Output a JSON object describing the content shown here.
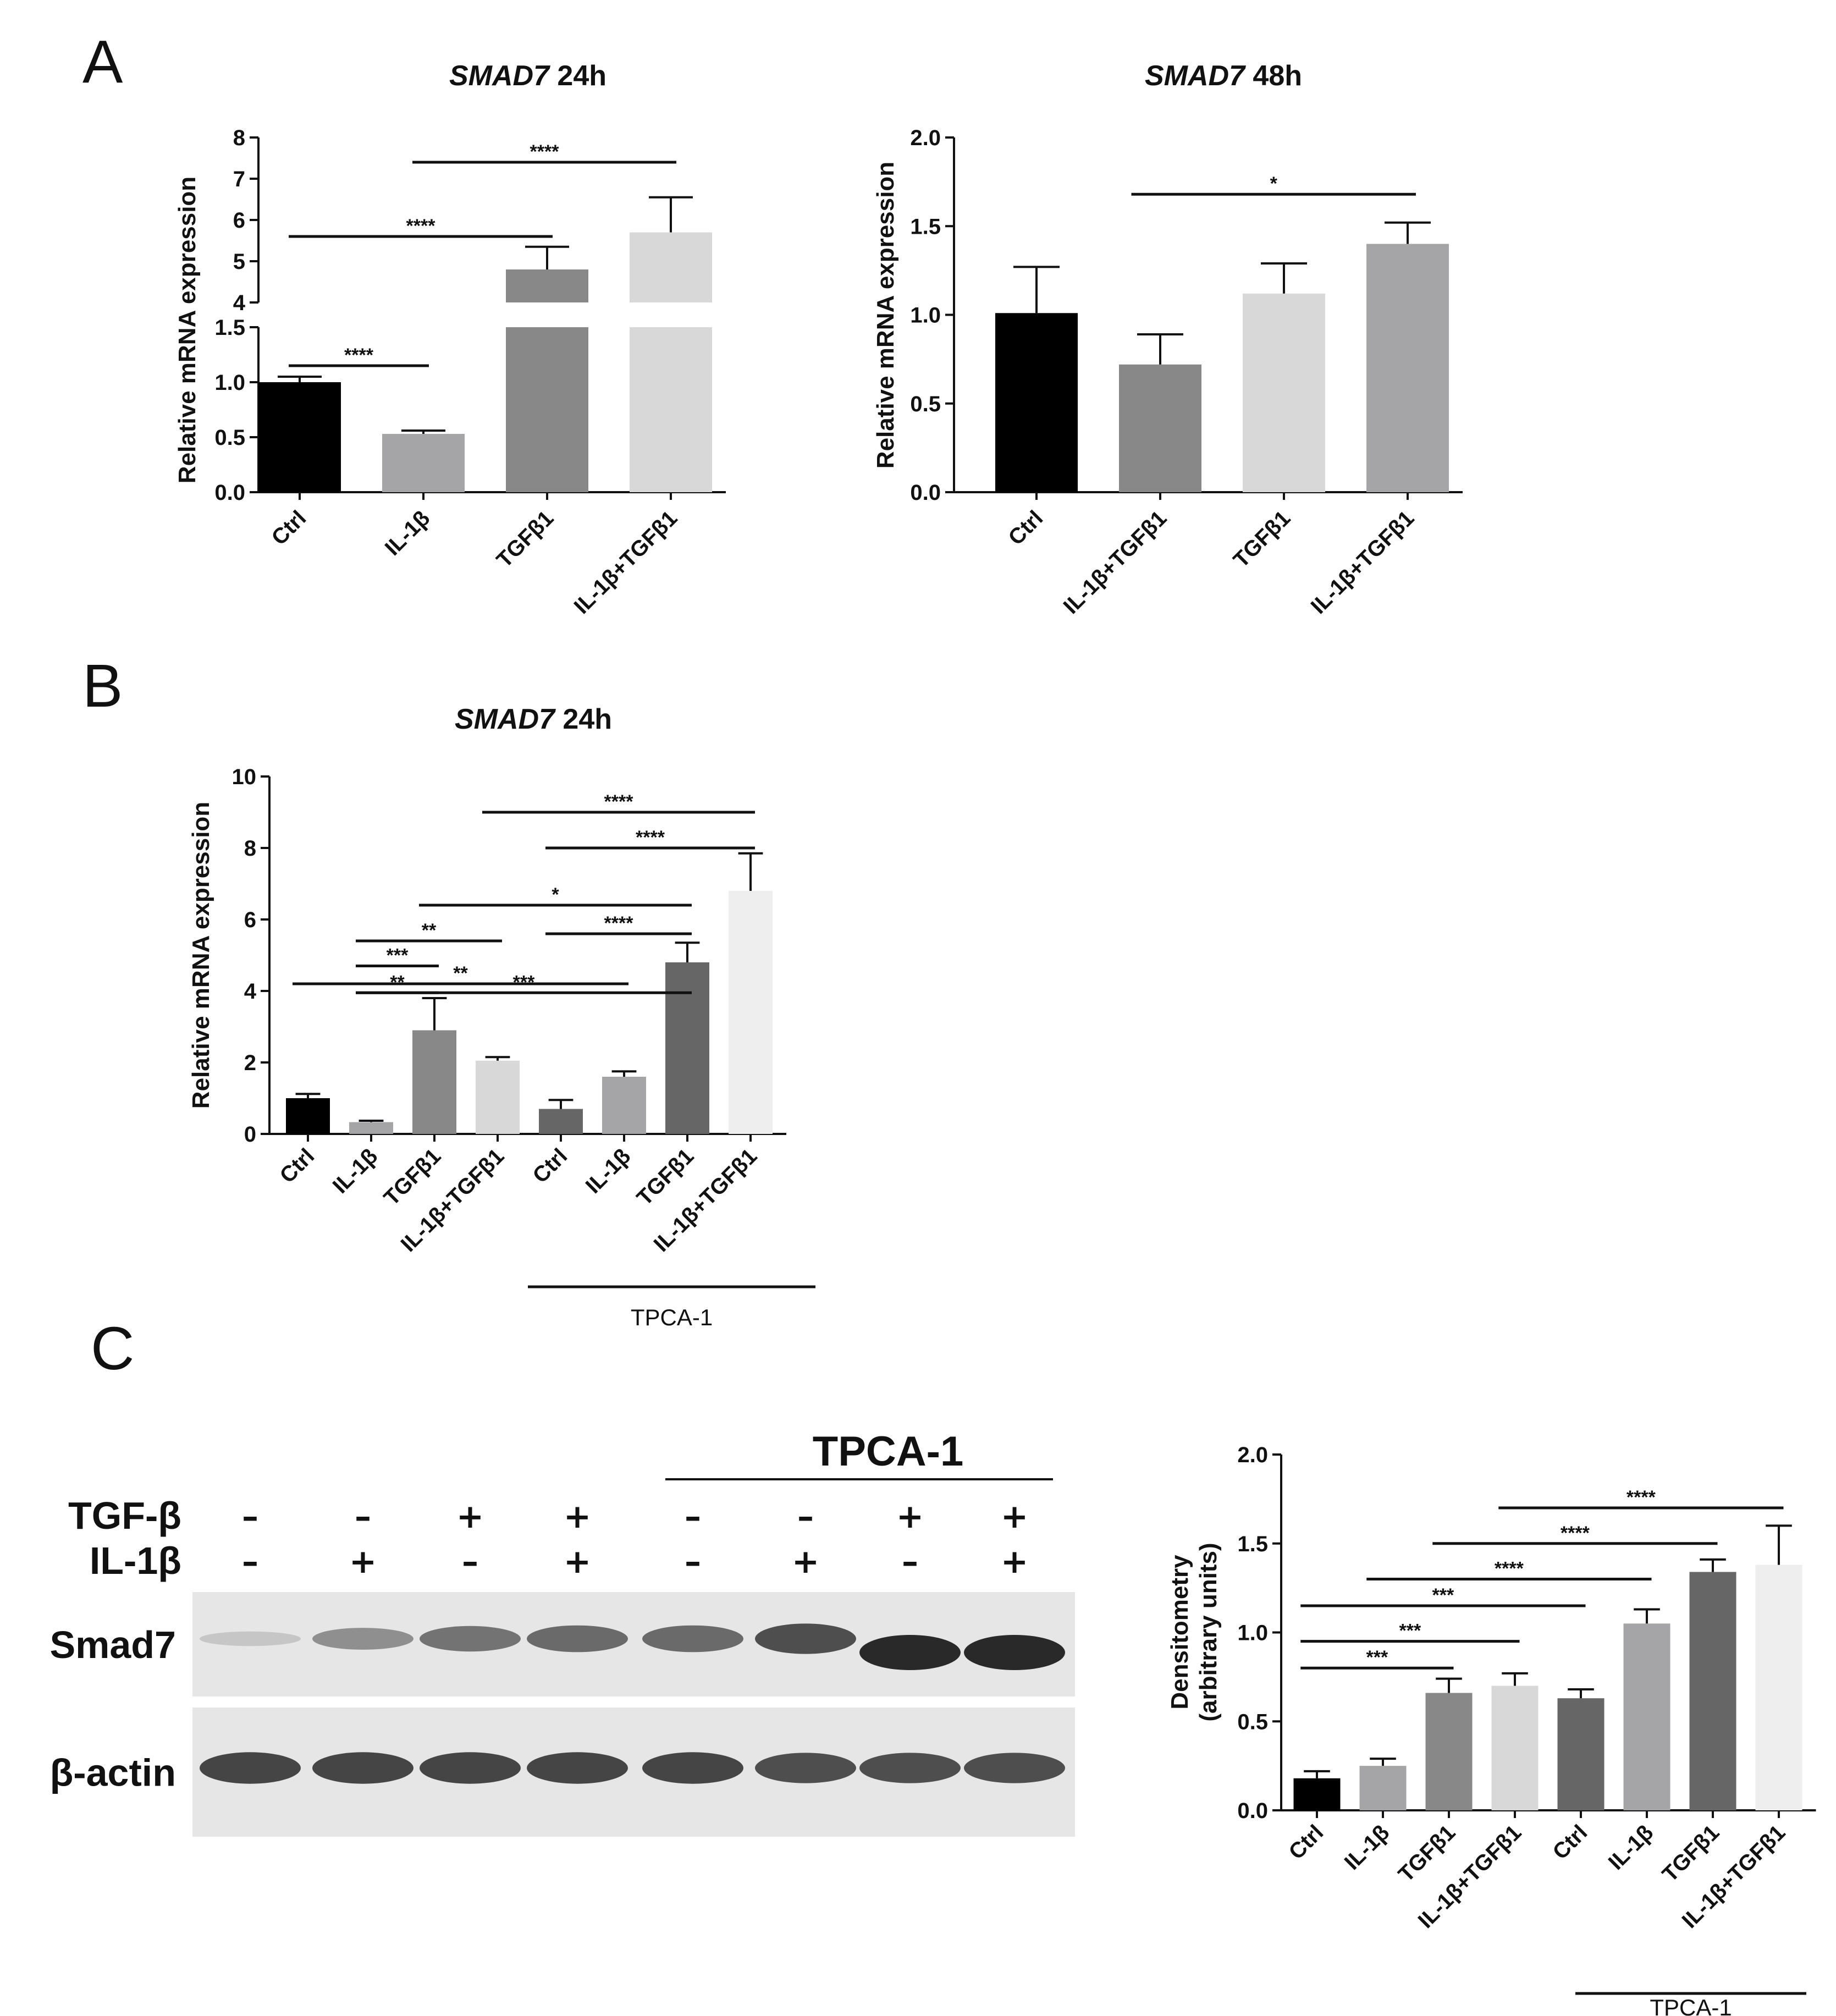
{
  "panels": {
    "A": "A",
    "B": "B",
    "C": "C"
  },
  "colors": {
    "black": "#000000",
    "grey_mid": "#8c8c8c",
    "grey_light": "#d8d8d8",
    "grey_light2": "#a5a5a8",
    "grey_dark": "#666666",
    "grey_verylight": "#eeeeee"
  },
  "chart_data": [
    {
      "id": "A1",
      "type": "bar",
      "title_gene": "SMAD7",
      "title_rest": " 24h",
      "ylabel": "Relative mRNA expression",
      "categories": [
        "Ctrl",
        "IL-1β",
        "TGFβ1",
        "IL-1β+TGFβ1"
      ],
      "values": [
        1.0,
        0.53,
        4.8,
        5.7
      ],
      "errors": [
        0.05,
        0.03,
        0.55,
        0.85
      ],
      "colors": [
        "#000000",
        "#a5a5a8",
        "#888888",
        "#d8d8d8"
      ],
      "broken_axis": true,
      "lower_range": [
        0,
        1.5
      ],
      "upper_range": [
        4,
        8
      ],
      "lower_ticks": [
        "0.0",
        "0.5",
        "1.0",
        "1.5"
      ],
      "upper_ticks": [
        "4",
        "5",
        "6",
        "7",
        "8"
      ],
      "significance": [
        {
          "from": 0,
          "to": 1,
          "label": "****"
        },
        {
          "from": 0,
          "to": 2,
          "label": "****"
        },
        {
          "from": 1,
          "to": 3,
          "label": "****"
        }
      ]
    },
    {
      "id": "A2",
      "type": "bar",
      "title_gene": "SMAD7",
      "title_rest": " 48h",
      "ylabel": "Relative mRNA expression",
      "categories": [
        "Ctrl",
        "IL-1β+TGFβ1",
        "TGFβ1",
        "IL-1β+TGFβ1"
      ],
      "values": [
        1.01,
        0.72,
        1.12,
        1.4
      ],
      "errors": [
        0.26,
        0.17,
        0.17,
        0.12
      ],
      "colors": [
        "#000000",
        "#888888",
        "#d8d8d8",
        "#a5a5a8"
      ],
      "ylim": [
        0,
        2.0
      ],
      "ticks": [
        "0.0",
        "0.5",
        "1.0",
        "1.5",
        "2.0"
      ],
      "significance": [
        {
          "from": 1,
          "to": 3,
          "label": "*"
        }
      ]
    },
    {
      "id": "B",
      "type": "bar",
      "title_gene": "SMAD7",
      "title_rest": " 24h",
      "ylabel": "Relative mRNA expression",
      "categories": [
        "Ctrl",
        "IL-1β",
        "TGFβ1",
        "IL-1β+TGFβ1",
        "Ctrl",
        "IL-1β",
        "TGFβ1",
        "IL-1β+TGFβ1"
      ],
      "values": [
        1.0,
        0.33,
        2.9,
        2.05,
        0.7,
        1.6,
        4.8,
        6.8
      ],
      "errors": [
        0.12,
        0.04,
        0.9,
        0.1,
        0.25,
        0.15,
        0.55,
        1.05
      ],
      "colors": [
        "#000000",
        "#a5a5a8",
        "#888888",
        "#d8d8d8",
        "#666666",
        "#a5a5a8",
        "#666666",
        "#eeeeee"
      ],
      "ylim": [
        0,
        10
      ],
      "ticks": [
        "0",
        "2",
        "4",
        "6",
        "8",
        "10"
      ],
      "group_label": "TPCA-1",
      "significance": [
        {
          "from": 0,
          "to": 5,
          "label": "**",
          "level": 4.2
        },
        {
          "from": 1,
          "to": 2,
          "label": "**",
          "level": 3.95
        },
        {
          "from": 1,
          "to": 6,
          "label": "***",
          "level": 3.95
        },
        {
          "from": 1,
          "to": 2,
          "label": "***",
          "level": 4.7
        },
        {
          "from": 1,
          "to": 3,
          "label": "**",
          "level": 5.4
        },
        {
          "from": 2,
          "to": 6,
          "label": "*",
          "level": 6.4
        },
        {
          "from": 4,
          "to": 6,
          "label": "****",
          "level": 5.6
        },
        {
          "from": 4,
          "to": 7,
          "label": "****",
          "level": 8.0
        },
        {
          "from": 3,
          "to": 7,
          "label": "****",
          "level": 9.0
        }
      ]
    },
    {
      "id": "C",
      "type": "bar",
      "ylabel_line1": "Densitometry",
      "ylabel_line2": "(arbitrary units)",
      "categories": [
        "Ctrl",
        "IL-1β",
        "TGFβ1",
        "IL-1β+TGFβ1",
        "Ctrl",
        "IL-1β",
        "TGFβ1",
        "IL-1β+TGFβ1"
      ],
      "values": [
        0.18,
        0.25,
        0.66,
        0.7,
        0.63,
        1.05,
        1.34,
        1.38
      ],
      "errors": [
        0.04,
        0.04,
        0.08,
        0.07,
        0.05,
        0.08,
        0.07,
        0.22
      ],
      "colors": [
        "#000000",
        "#a5a5a8",
        "#888888",
        "#d8d8d8",
        "#666666",
        "#a5a5a8",
        "#666666",
        "#eeeeee"
      ],
      "ylim": [
        0,
        2.0
      ],
      "ticks": [
        "0.0",
        "0.5",
        "1.0",
        "1.5",
        "2.0"
      ],
      "group_label": "TPCA-1",
      "significance": [
        {
          "from": 0,
          "to": 2,
          "label": "***",
          "level": 0.8
        },
        {
          "from": 0,
          "to": 3,
          "label": "***",
          "level": 0.95
        },
        {
          "from": 0,
          "to": 4,
          "label": "***",
          "level": 1.15
        },
        {
          "from": 1,
          "to": 5,
          "label": "****",
          "level": 1.3
        },
        {
          "from": 2,
          "to": 6,
          "label": "****",
          "level": 1.5
        },
        {
          "from": 3,
          "to": 7,
          "label": "****",
          "level": 1.7
        }
      ]
    }
  ],
  "blot": {
    "tpca_label": "TPCA-1",
    "rows": [
      {
        "label": "TGF-β",
        "signs": [
          "–",
          "–",
          "+",
          "+",
          "–",
          "–",
          "+",
          "+"
        ]
      },
      {
        "label": "IL-1β",
        "signs": [
          "–",
          "+",
          "–",
          "+",
          "–",
          "+",
          "–",
          "+"
        ]
      }
    ],
    "bands": [
      {
        "label": "Smad7",
        "intensity": [
          0.15,
          0.45,
          0.6,
          0.65,
          0.65,
          0.8,
          1.0,
          1.0
        ]
      },
      {
        "label": "β-actin",
        "intensity": [
          0.85,
          0.85,
          0.85,
          0.85,
          0.85,
          0.8,
          0.8,
          0.8
        ]
      }
    ]
  }
}
